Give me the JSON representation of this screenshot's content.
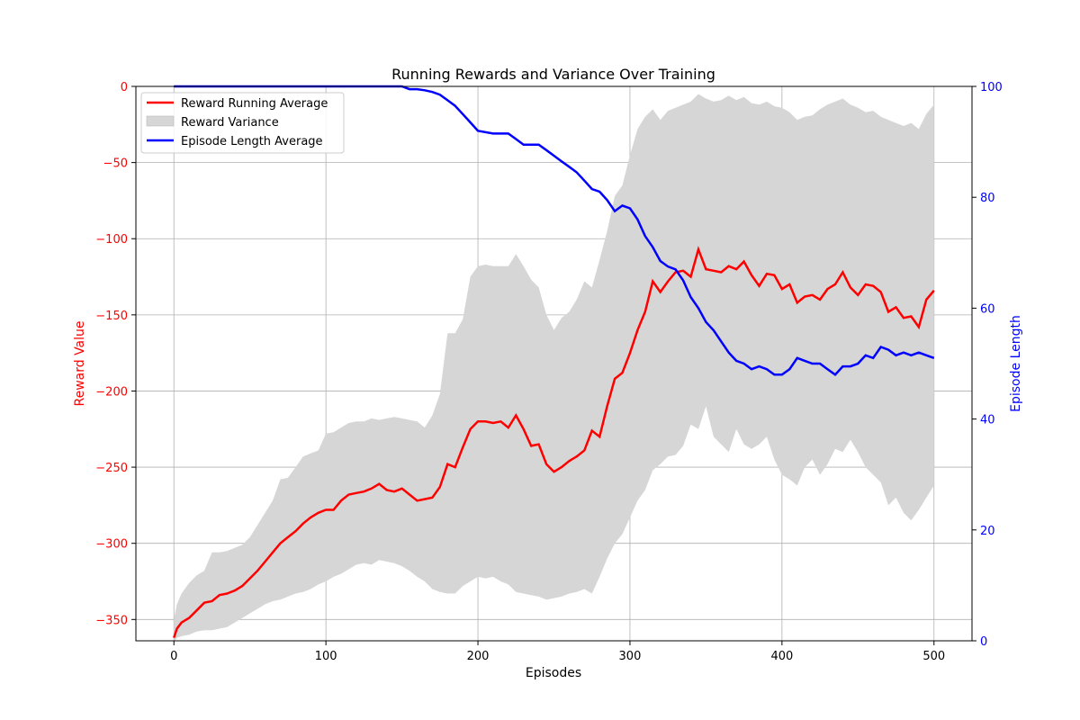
{
  "chart_data": {
    "type": "line",
    "title": "Running Rewards and Variance Over Training",
    "xlabel": "Episodes",
    "ylabel_left": "Reward Value",
    "ylabel_right": "Episode Length",
    "xlim": [
      -25,
      525
    ],
    "ylim_left": [
      -364,
      0
    ],
    "ylim_right": [
      0,
      100
    ],
    "xticks": [
      0,
      100,
      200,
      300,
      400,
      500
    ],
    "yticks_left": [
      0,
      -50,
      -100,
      -150,
      -200,
      -250,
      -300,
      -350
    ],
    "yticks_right": [
      0,
      20,
      40,
      60,
      80,
      100
    ],
    "grid": true,
    "legend_position": "top-left",
    "colors": {
      "reward": "#ff0000",
      "variance": "#d6d6d6",
      "length": "#0000ff",
      "left_axis": "#ff0000",
      "right_axis": "#0000ff"
    },
    "series": [
      {
        "name": "Reward Running Average",
        "axis": "left",
        "x": [
          0,
          2,
          5,
          10,
          15,
          20,
          25,
          30,
          35,
          40,
          45,
          50,
          55,
          60,
          65,
          70,
          75,
          80,
          85,
          90,
          95,
          100,
          105,
          110,
          115,
          120,
          125,
          130,
          135,
          140,
          145,
          150,
          155,
          160,
          165,
          170,
          175,
          180,
          185,
          190,
          195,
          200,
          205,
          210,
          215,
          220,
          225,
          230,
          235,
          240,
          245,
          250,
          255,
          260,
          265,
          270,
          275,
          280,
          285,
          290,
          295,
          300,
          305,
          310,
          315,
          320,
          325,
          330,
          335,
          340,
          345,
          350,
          355,
          360,
          365,
          370,
          375,
          380,
          385,
          390,
          395,
          400,
          405,
          410,
          415,
          420,
          425,
          430,
          435,
          440,
          445,
          450,
          455,
          460,
          465,
          470,
          475,
          480,
          485,
          490,
          495,
          500
        ],
        "values": [
          -362,
          -356,
          -352,
          -349,
          -344,
          -339,
          -338,
          -334,
          -333,
          -331,
          -328,
          -323,
          -318,
          -312,
          -306,
          -300,
          -296,
          -292,
          -287,
          -283,
          -280,
          -278,
          -278,
          -272,
          -268,
          -267,
          -266,
          -264,
          -261,
          -265,
          -266,
          -264,
          -268,
          -272,
          -271,
          -270,
          -263,
          -248,
          -250,
          -237,
          -225,
          -220,
          -220,
          -221,
          -220,
          -224,
          -216,
          -225,
          -236,
          -235,
          -248,
          -253,
          -250,
          -246,
          -243,
          -239,
          -226,
          -230,
          -210,
          -192,
          -188,
          -175,
          -160,
          -148,
          -128,
          -135,
          -128,
          -122,
          -121,
          -125,
          -107,
          -120,
          -121,
          -122,
          -118,
          -120,
          -115,
          -124,
          -131,
          -123,
          -124,
          -133,
          -130,
          -142,
          -138,
          -137,
          -140,
          -133,
          -130,
          -122,
          -132,
          -137,
          -130,
          -131,
          -135,
          -148,
          -145,
          -152,
          -151,
          -158,
          -140,
          -134
        ]
      },
      {
        "name": "Reward Variance",
        "axis": "left",
        "x": [
          0,
          2,
          5,
          10,
          15,
          20,
          25,
          30,
          35,
          40,
          45,
          50,
          55,
          60,
          65,
          70,
          75,
          80,
          85,
          90,
          95,
          100,
          105,
          110,
          115,
          120,
          125,
          130,
          135,
          140,
          145,
          150,
          155,
          160,
          165,
          170,
          175,
          180,
          185,
          190,
          195,
          200,
          205,
          210,
          215,
          220,
          225,
          230,
          235,
          240,
          245,
          250,
          255,
          260,
          265,
          270,
          275,
          280,
          285,
          290,
          295,
          300,
          305,
          310,
          315,
          320,
          325,
          330,
          335,
          340,
          345,
          350,
          355,
          360,
          365,
          370,
          375,
          380,
          385,
          390,
          395,
          400,
          405,
          410,
          415,
          420,
          425,
          430,
          435,
          440,
          445,
          450,
          455,
          460,
          465,
          470,
          475,
          480,
          485,
          490,
          495,
          500
        ],
        "upper": [
          -350,
          -340,
          -333,
          -326,
          -321,
          -318,
          -306,
          -306,
          -305,
          -303,
          -301,
          -296,
          -288,
          -280,
          -272,
          -258,
          -257,
          -250,
          -243,
          -241,
          -239,
          -228,
          -227,
          -224,
          -221,
          -220,
          -220,
          -218,
          -219,
          -218,
          -217,
          -218,
          -219,
          -220,
          -224,
          -216,
          -202,
          -162,
          -162,
          -153,
          -125,
          -118,
          -117,
          -118,
          -118,
          -118,
          -110,
          -118,
          -127,
          -132,
          -150,
          -160,
          -152,
          -148,
          -140,
          -128,
          -132,
          -114,
          -95,
          -72,
          -65,
          -45,
          -28,
          -20,
          -15,
          -22,
          -16,
          -14,
          -12,
          -10,
          -5,
          -8,
          -10,
          -9,
          -6,
          -9,
          -7,
          -11,
          -12,
          -10,
          -13,
          -14,
          -17,
          -22,
          -20,
          -19,
          -15,
          -12,
          -10,
          -8,
          -12,
          -14,
          -17,
          -16,
          -20,
          -22,
          -24,
          -26,
          -24,
          -28,
          -18,
          -12
        ],
        "lower": [
          -365,
          -363,
          -362,
          -362,
          -362,
          -360,
          -358,
          -352,
          -350,
          -347,
          -342,
          -336,
          -330,
          -322,
          -317,
          -314,
          -310,
          -302,
          -292,
          -288,
          -284,
          -279,
          -276,
          -272,
          -270,
          -268,
          -266,
          -264,
          -261,
          -265,
          -266,
          -264,
          -268,
          -272,
          -271,
          -270,
          -263,
          -250,
          -251,
          -239,
          -227,
          -222,
          -222,
          -223,
          -222,
          -226,
          -218,
          -227,
          -238,
          -237,
          -250,
          -255,
          -252,
          -248,
          -245,
          -241,
          -228,
          -232,
          -212,
          -194,
          -190,
          -177,
          -162,
          -150,
          -130,
          -137,
          -130,
          -124,
          -123,
          -127,
          -109,
          -122,
          -123,
          -124,
          -120,
          -122,
          -117,
          -126,
          -133,
          -125,
          -126,
          -135,
          -132,
          -144,
          -140,
          -139,
          -142,
          -135,
          -132,
          -124,
          -134,
          -139,
          -132,
          -133,
          -137,
          -150,
          -147,
          -154,
          -153,
          -160,
          -142,
          -136
        ],
        "lower_band": [
          -365,
          -362,
          -361,
          -360,
          -358,
          -357,
          -357,
          -356,
          -355,
          -352,
          -349,
          -346,
          -343,
          -340,
          -338,
          -337,
          -335,
          -333,
          -332,
          -330,
          -327,
          -325,
          -322,
          -320,
          -317,
          -314,
          -313,
          -314,
          -311,
          -312,
          -313,
          -315,
          -318,
          -322,
          -325,
          -330,
          -332,
          -333,
          -333,
          -328,
          -325,
          -322,
          -323,
          -322,
          -325,
          -327,
          -332,
          -333,
          -334,
          -335,
          -337,
          -336,
          -335,
          -333,
          -332,
          -330,
          -333,
          -322,
          -310,
          -300,
          -294,
          -283,
          -272,
          -265,
          -252,
          -248,
          -243,
          -242,
          -236,
          -222,
          -225,
          -210,
          -230,
          -235,
          -240,
          -225,
          -235,
          -238,
          -235,
          -230,
          -245,
          -255,
          -258,
          -262,
          -250,
          -245,
          -255,
          -248,
          -238,
          -240,
          -232,
          -240,
          -250,
          -255,
          -260,
          -275,
          -270,
          -280,
          -285,
          -278,
          -270,
          -262
        ]
      },
      {
        "name": "Episode Length Average",
        "axis": "right",
        "x": [
          0,
          20,
          40,
          60,
          80,
          100,
          120,
          140,
          150,
          155,
          160,
          165,
          170,
          175,
          180,
          185,
          190,
          195,
          200,
          210,
          220,
          225,
          230,
          240,
          245,
          250,
          255,
          260,
          265,
          270,
          275,
          280,
          285,
          290,
          295,
          300,
          305,
          310,
          315,
          320,
          325,
          330,
          335,
          340,
          345,
          350,
          355,
          360,
          365,
          370,
          375,
          380,
          385,
          390,
          395,
          400,
          405,
          410,
          415,
          420,
          425,
          430,
          435,
          440,
          445,
          450,
          455,
          460,
          465,
          470,
          475,
          480,
          485,
          490,
          495,
          500
        ],
        "values": [
          100,
          100,
          100,
          100,
          100,
          100,
          100,
          100,
          100,
          99.5,
          99.5,
          99.3,
          99.0,
          98.5,
          97.5,
          96.5,
          95.0,
          93.5,
          92.0,
          91.5,
          91.5,
          90.5,
          89.5,
          89.5,
          88.5,
          87.5,
          86.5,
          85.5,
          84.5,
          83.0,
          81.5,
          81.0,
          79.5,
          77.5,
          78.5,
          78.0,
          76.0,
          73.0,
          71.0,
          68.5,
          67.5,
          67.0,
          65.0,
          62.0,
          60.0,
          57.5,
          56.0,
          54.0,
          52.0,
          50.5,
          50.0,
          49.0,
          49.5,
          49.0,
          48.0,
          48.0,
          49.0,
          51.0,
          50.5,
          50.0,
          50.0,
          49.0,
          48.0,
          49.5,
          49.5,
          50.0,
          51.5,
          51.0,
          53.0,
          52.5,
          51.5,
          52.0,
          51.5,
          52.0,
          51.5,
          51.0
        ]
      }
    ]
  }
}
